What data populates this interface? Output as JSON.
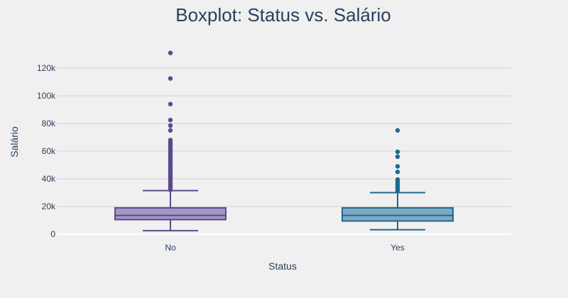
{
  "chart_data": {
    "type": "box",
    "title": "Boxplot: Status vs. Salário",
    "xlabel": "Status",
    "ylabel": "Salário",
    "categories": [
      "No",
      "Yes"
    ],
    "ylim": [
      -5000,
      140000
    ],
    "yticks": [
      0,
      20000,
      40000,
      60000,
      80000,
      100000,
      120000
    ],
    "ytick_labels": [
      "0",
      "20k",
      "40k",
      "60k",
      "80k",
      "100k",
      "120k"
    ],
    "grid": true,
    "legend": "none",
    "series": [
      {
        "category": "No",
        "color": "#5b4a8b",
        "fill": "#a596c6",
        "whisker_low": 2500,
        "q1": 10500,
        "median": 13500,
        "q3": 19000,
        "whisker_high": 31500,
        "outliers": [
          32000,
          33000,
          34000,
          35000,
          36000,
          37000,
          38000,
          39000,
          40000,
          41000,
          42000,
          43000,
          44000,
          45000,
          46000,
          47000,
          48000,
          49000,
          50000,
          51000,
          52000,
          53000,
          54000,
          55000,
          56000,
          57000,
          58000,
          59000,
          60000,
          61000,
          62000,
          63000,
          64000,
          65000,
          66000,
          67000,
          68000,
          75000,
          78500,
          82500,
          94000,
          112500,
          131000
        ]
      },
      {
        "category": "Yes",
        "color": "#1f6891",
        "fill": "#7ea9c3",
        "whisker_low": 3200,
        "q1": 9500,
        "median": 13500,
        "q3": 19000,
        "whisker_high": 30000,
        "outliers": [
          31500,
          32500,
          33500,
          34500,
          35500,
          36500,
          37500,
          38500,
          39500,
          45000,
          49000,
          56000,
          59500,
          75000
        ]
      }
    ]
  }
}
